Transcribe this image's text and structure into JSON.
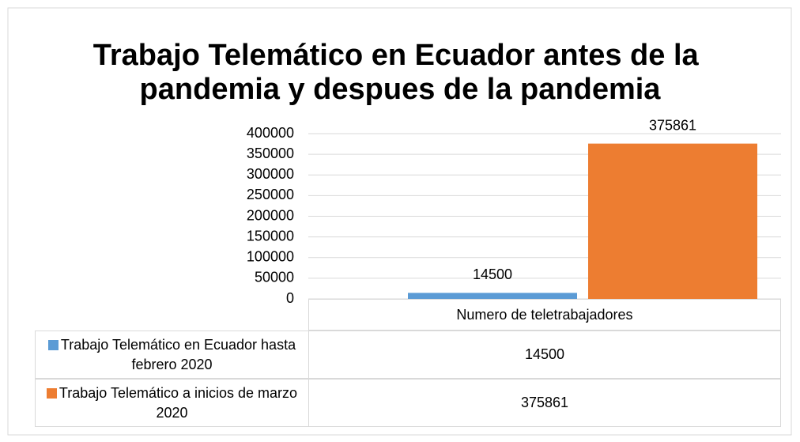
{
  "chart_data": {
    "type": "bar",
    "title": "Trabajo Telemático en Ecuador antes de la pandemia y despues de la pandemia",
    "categories": [
      "Numero de teletrabajadores"
    ],
    "series": [
      {
        "name": "Trabajo Telemático en Ecuador hasta febrero 2020",
        "color": "#5b9bd5",
        "values": [
          14500
        ]
      },
      {
        "name": "Trabajo Telemático a inicios de marzo 2020",
        "color": "#ed7d31",
        "values": [
          375861
        ]
      }
    ],
    "ylim": [
      0,
      400000
    ],
    "yticks": [
      0,
      50000,
      100000,
      150000,
      200000,
      250000,
      300000,
      350000,
      400000
    ],
    "grid": true
  }
}
